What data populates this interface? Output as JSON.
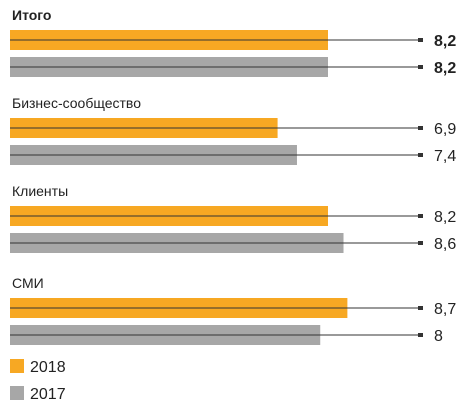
{
  "chart_data": {
    "type": "bar",
    "orientation": "horizontal",
    "categories": [
      "Итого",
      "Бизнес-сообщество",
      "Клиенты",
      "СМИ"
    ],
    "category_bold": [
      true,
      false,
      false,
      false
    ],
    "series": [
      {
        "name": "2018",
        "color": "#f7a823",
        "values": [
          8.2,
          6.9,
          8.2,
          8.7
        ]
      },
      {
        "name": "2017",
        "color": "#a7a7a7",
        "values": [
          8.2,
          7.4,
          8.6,
          8.0
        ]
      }
    ],
    "value_labels": [
      [
        "8,2",
        "6,9",
        "8,2",
        "8,7"
      ],
      [
        "8,2",
        "7,4",
        "8,6",
        "8"
      ]
    ],
    "xlim": [
      0,
      10
    ],
    "legend": {
      "placement": "bottom-left",
      "entries": [
        "2018",
        "2017"
      ]
    },
    "grid": false
  }
}
